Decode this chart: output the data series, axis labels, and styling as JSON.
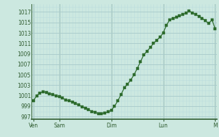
{
  "bg_color": "#cce8e0",
  "grid_color_major": "#aacccc",
  "grid_color_minor": "#bbdddd",
  "line_color": "#2d6b2d",
  "marker_color": "#2d6b2d",
  "ylim": [
    996.5,
    1018.5
  ],
  "yticks": [
    997,
    999,
    1001,
    1003,
    1005,
    1007,
    1009,
    1011,
    1013,
    1015,
    1017
  ],
  "day_labels": [
    "Ven",
    "Sam",
    "Dim",
    "Lun",
    "M"
  ],
  "day_positions": [
    0,
    8,
    24,
    40,
    56
  ],
  "pressure_values": [
    1000.0,
    1001.0,
    1001.5,
    1001.8,
    1001.6,
    1001.4,
    1001.2,
    1001.0,
    1000.8,
    1000.5,
    1000.2,
    1000.0,
    999.8,
    999.5,
    999.2,
    998.9,
    998.6,
    998.3,
    998.0,
    997.8,
    997.6,
    997.6,
    997.7,
    997.9,
    998.2,
    999.0,
    1000.0,
    1001.2,
    1002.5,
    1003.2,
    1004.0,
    1005.0,
    1006.2,
    1007.5,
    1008.8,
    1009.5,
    1010.2,
    1011.0,
    1011.6,
    1012.2,
    1013.0,
    1014.5,
    1015.5,
    1015.8,
    1016.0,
    1016.3,
    1016.5,
    1016.8,
    1017.2,
    1016.8,
    1016.5,
    1016.2,
    1015.8,
    1015.3,
    1014.8,
    1015.5,
    1013.8
  ]
}
